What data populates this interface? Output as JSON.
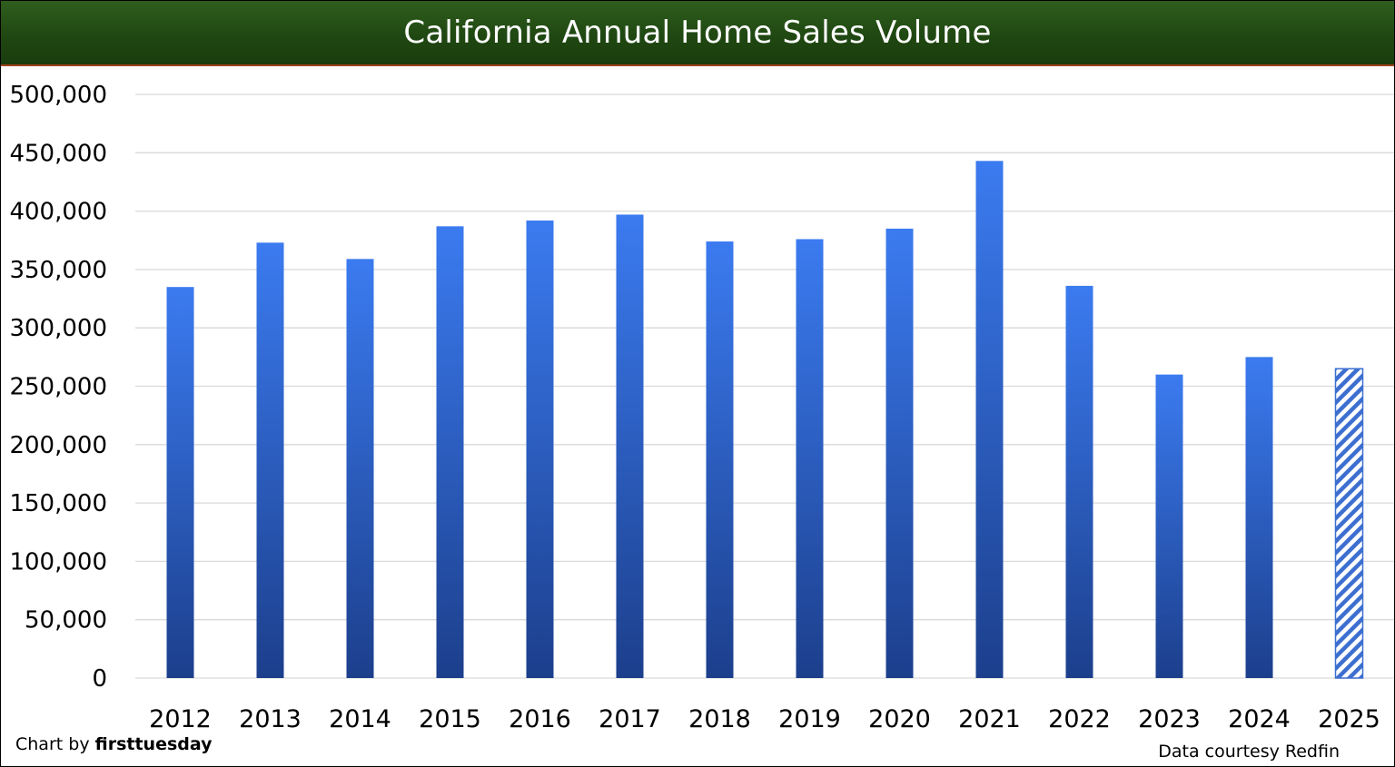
{
  "chart_data": {
    "type": "bar",
    "title": "California Annual Home Sales Volume",
    "xlabel": "",
    "ylabel": "",
    "categories": [
      "2012",
      "2013",
      "2014",
      "2015",
      "2016",
      "2017",
      "2018",
      "2019",
      "2020",
      "2021",
      "2022",
      "2023",
      "2024",
      "2025"
    ],
    "values": [
      335000,
      373000,
      359000,
      387000,
      392000,
      397000,
      374000,
      376000,
      385000,
      443000,
      336000,
      260000,
      275000,
      265000
    ],
    "ylim": [
      0,
      500000
    ],
    "yticks": [
      0,
      50000,
      100000,
      150000,
      200000,
      250000,
      300000,
      350000,
      400000,
      450000,
      500000
    ],
    "ytick_labels": [
      "0",
      "50,000",
      "100,000",
      "150,000",
      "200,000",
      "250,000",
      "300,000",
      "350,000",
      "400,000",
      "450,000",
      "500,000"
    ],
    "grid": true,
    "legend": "none",
    "bar_color_top": "#3b7bf0",
    "bar_color_bottom": "#1c3f8c",
    "hatched_categories": [
      "2025"
    ],
    "hatch_color": "#3d6fd0"
  },
  "header": {
    "background": "#204812",
    "border": "#a0421a"
  },
  "footer": {
    "credit_prefix": "Chart by ",
    "credit_brand": "firsttuesday",
    "source": "Data courtesy Redfin"
  }
}
